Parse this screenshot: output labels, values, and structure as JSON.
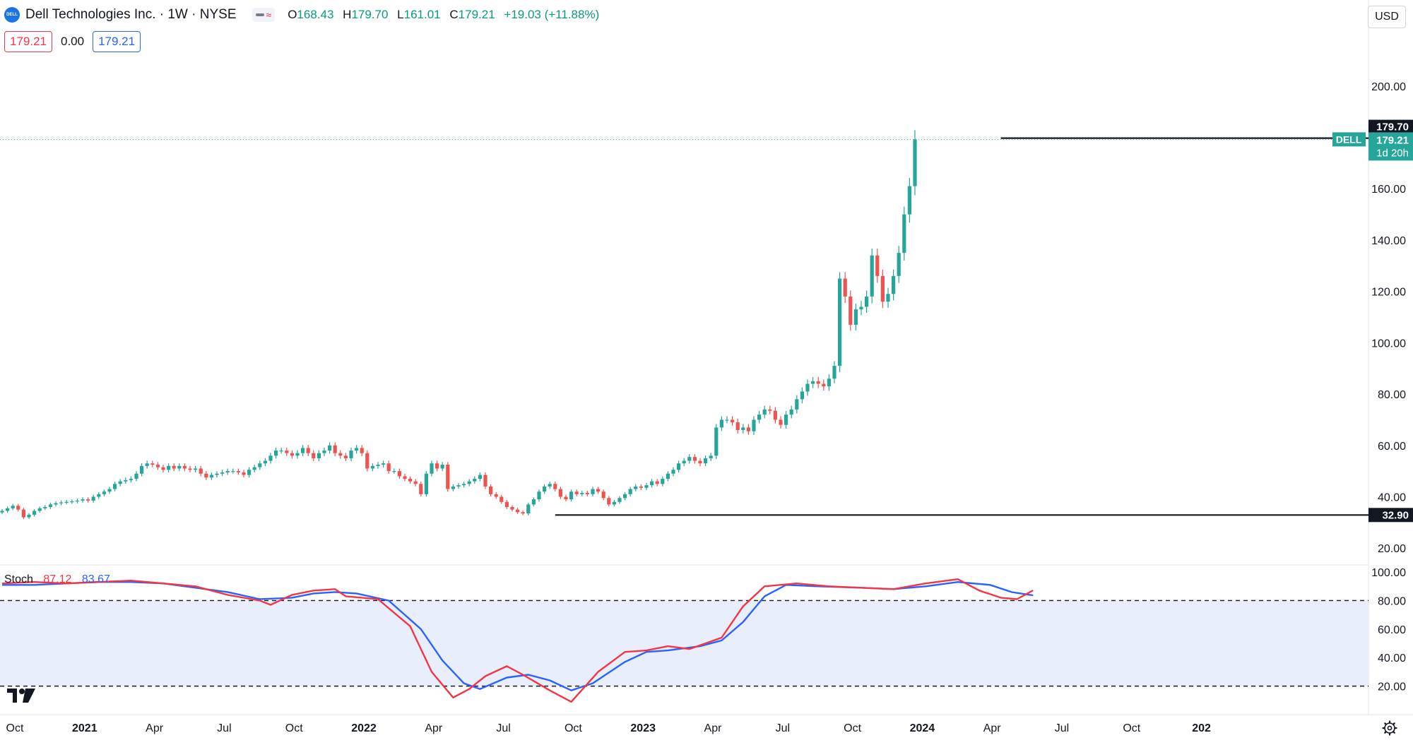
{
  "header": {
    "logo_text": "DELL",
    "symbol_title": "Dell Technologies Inc. · 1W · NYSE",
    "ohlc": {
      "o_label": "O",
      "o": "168.43",
      "h_label": "H",
      "h": "179.70",
      "l_label": "L",
      "l": "161.01",
      "c_label": "C",
      "c": "179.21",
      "change": "+19.03 (+11.88%)"
    },
    "price_box_red": "179.21",
    "price_box_mid": "0.00",
    "price_box_blue": "179.21",
    "currency": "USD"
  },
  "stoch_legend": {
    "name": "Stoch",
    "k": "87.12",
    "d": "83.67"
  },
  "price_tags": {
    "high": "179.70",
    "symbol": "DELL",
    "last": "179.21",
    "countdown": "1d 20h",
    "low": "32.90"
  },
  "colors": {
    "up": "#26a69a",
    "down": "#ef5350",
    "stoch_k": "#f23645",
    "stoch_d": "#2962ff",
    "band": "#e9eefc",
    "axis_text": "#131722",
    "grid_text": "#131722"
  },
  "chart_data": [
    {
      "type": "candlestick",
      "title": "Dell Technologies Inc. · 1W · NYSE",
      "ylim": [
        14,
        228
      ],
      "y_ticks": [
        "20.00",
        "40.00",
        "60.00",
        "80.00",
        "100.00",
        "120.00",
        "140.00",
        "160.00",
        "200.00"
      ],
      "x_ticks": [
        "Oct",
        "2021",
        "Apr",
        "Jul",
        "Oct",
        "2022",
        "Apr",
        "Jul",
        "Oct",
        "2023",
        "Apr",
        "Jul",
        "Oct",
        "2024",
        "Apr",
        "Jul",
        "Oct",
        "202"
      ],
      "x_tick_weeks": [
        0,
        13,
        26,
        39,
        52,
        65,
        78,
        91,
        104,
        117,
        130,
        143,
        156,
        169,
        182,
        195,
        208,
        221
      ],
      "horizontal_lines": [
        {
          "label": "179.70",
          "value": 179.7,
          "from_week": 186
        },
        {
          "label": "32.90",
          "value": 32.9,
          "from_week": 103
        }
      ],
      "last_price": 179.21,
      "closes": [
        34.5,
        35.5,
        36.5,
        35,
        32,
        33,
        34.5,
        35.5,
        36,
        37,
        37.5,
        37.8,
        38,
        38.2,
        38.5,
        39,
        38.5,
        40,
        41,
        42,
        43,
        45,
        46,
        46.5,
        47,
        49,
        52,
        53,
        52.5,
        51.5,
        50.5,
        52,
        51,
        52,
        51,
        50.5,
        51,
        49,
        47.5,
        48.5,
        49,
        49.5,
        50,
        50,
        49.5,
        48.5,
        50.5,
        51.5,
        53,
        54,
        56,
        58,
        58,
        57,
        56,
        57,
        59,
        57,
        55,
        57,
        58,
        60,
        57,
        56,
        55,
        58,
        59,
        57,
        51,
        52,
        52.5,
        53,
        50,
        50,
        48,
        47,
        46,
        45,
        41,
        49,
        53,
        51,
        52.5,
        43,
        44,
        44.5,
        45,
        46,
        47,
        48.5,
        44,
        41,
        40,
        38,
        36,
        35,
        34,
        33.5,
        37,
        39,
        42,
        44,
        45,
        43,
        40,
        39,
        42,
        41,
        41.5,
        41,
        43,
        42,
        39.5,
        37,
        38,
        39.5,
        41,
        43,
        44,
        43.5,
        44.5,
        46,
        45,
        47,
        49,
        50.5,
        53,
        54,
        55.5,
        54,
        53,
        55,
        56,
        67,
        70,
        70,
        69,
        66,
        67,
        65.5,
        70,
        72,
        74,
        73.5,
        70,
        68,
        72,
        74,
        78,
        81,
        84,
        85,
        84,
        83,
        86,
        91,
        125,
        118,
        107,
        113,
        114,
        118,
        134,
        126,
        116,
        119,
        126,
        135,
        150,
        161,
        179.21
      ],
      "stoch_ylim": [
        0,
        105
      ],
      "stoch_y_ticks": [
        "20.00",
        "40.00",
        "60.00",
        "80.00",
        "100.00"
      ],
      "stoch_bands": [
        20,
        80
      ],
      "stoch_k_points": [
        [
          0,
          92
        ],
        [
          6,
          93
        ],
        [
          12,
          92
        ],
        [
          18,
          93
        ],
        [
          24,
          94
        ],
        [
          30,
          92
        ],
        [
          36,
          90
        ],
        [
          42,
          84
        ],
        [
          48,
          80
        ],
        [
          50,
          77
        ],
        [
          54,
          84
        ],
        [
          58,
          87
        ],
        [
          62,
          88
        ],
        [
          64,
          83
        ],
        [
          70,
          81
        ],
        [
          76,
          62
        ],
        [
          80,
          30
        ],
        [
          84,
          12
        ],
        [
          87,
          18
        ],
        [
          90,
          27
        ],
        [
          94,
          34
        ],
        [
          97,
          28
        ],
        [
          102,
          17
        ],
        [
          106,
          9
        ],
        [
          111,
          30
        ],
        [
          116,
          44
        ],
        [
          120,
          45
        ],
        [
          124,
          48
        ],
        [
          128,
          46
        ],
        [
          134,
          54
        ],
        [
          138,
          76
        ],
        [
          142,
          90
        ],
        [
          148,
          92
        ],
        [
          154,
          90
        ],
        [
          160,
          89
        ],
        [
          166,
          88
        ],
        [
          172,
          92
        ],
        [
          178,
          95
        ],
        [
          182,
          87
        ],
        [
          186,
          82
        ],
        [
          189,
          81
        ],
        [
          192,
          87.12
        ]
      ],
      "stoch_d_points": [
        [
          0,
          91
        ],
        [
          6,
          91
        ],
        [
          12,
          92
        ],
        [
          18,
          93
        ],
        [
          24,
          93
        ],
        [
          30,
          92
        ],
        [
          36,
          89
        ],
        [
          42,
          86
        ],
        [
          48,
          81
        ],
        [
          54,
          82
        ],
        [
          58,
          85
        ],
        [
          62,
          86
        ],
        [
          66,
          85
        ],
        [
          72,
          80
        ],
        [
          78,
          60
        ],
        [
          82,
          38
        ],
        [
          86,
          22
        ],
        [
          89,
          18
        ],
        [
          94,
          26
        ],
        [
          98,
          28
        ],
        [
          102,
          24
        ],
        [
          106,
          17
        ],
        [
          110,
          22
        ],
        [
          116,
          37
        ],
        [
          120,
          44
        ],
        [
          124,
          45
        ],
        [
          130,
          48
        ],
        [
          134,
          52
        ],
        [
          138,
          65
        ],
        [
          142,
          83
        ],
        [
          146,
          91
        ],
        [
          152,
          90
        ],
        [
          160,
          89
        ],
        [
          166,
          88
        ],
        [
          172,
          90
        ],
        [
          178,
          93
        ],
        [
          184,
          91
        ],
        [
          188,
          86
        ],
        [
          192,
          83.67
        ]
      ]
    }
  ]
}
